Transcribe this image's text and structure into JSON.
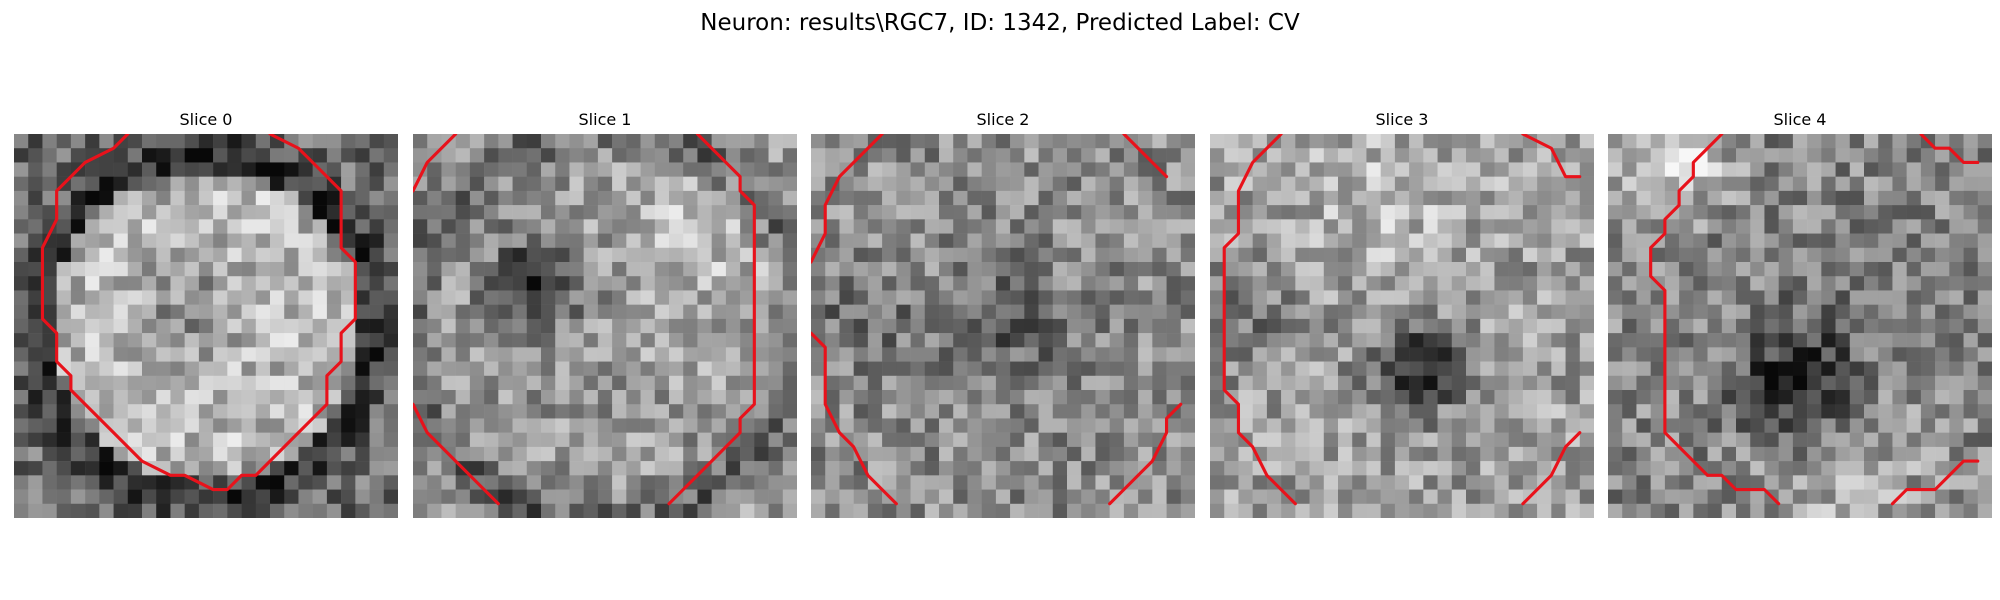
{
  "figure": {
    "title": "Neuron: results\\RGC7, ID: 1342, Predicted Label: CV"
  },
  "colors": {
    "contour": "#e8121b"
  },
  "slices": [
    {
      "title": "Slice 0",
      "pattern": "bright-disk",
      "contours": [
        [
          [
            8,
            0
          ],
          [
            7,
            1
          ],
          [
            5,
            2
          ],
          [
            3,
            4
          ],
          [
            3,
            6
          ],
          [
            2,
            8
          ],
          [
            2,
            13
          ],
          [
            3,
            14
          ],
          [
            3,
            16
          ],
          [
            4,
            17
          ],
          [
            4,
            18
          ],
          [
            5,
            19
          ],
          [
            7,
            21
          ],
          [
            8,
            22
          ],
          [
            9,
            23
          ],
          [
            11,
            24
          ],
          [
            12,
            24
          ],
          [
            14,
            25
          ],
          [
            15,
            25
          ],
          [
            16,
            24
          ],
          [
            17,
            24
          ],
          [
            19,
            22
          ],
          [
            20,
            21
          ],
          [
            21,
            20
          ],
          [
            22,
            19
          ],
          [
            22,
            17
          ],
          [
            23,
            16
          ],
          [
            23,
            14
          ],
          [
            24,
            13
          ],
          [
            24,
            9
          ],
          [
            23,
            8
          ],
          [
            23,
            4
          ],
          [
            22,
            3
          ],
          [
            21,
            2
          ],
          [
            20,
            1
          ],
          [
            18,
            0
          ]
        ]
      ]
    },
    {
      "title": "Slice 1",
      "pattern": "mid-disk-dark-left",
      "contours": [
        [
          [
            3,
            0
          ],
          [
            1,
            2
          ],
          [
            0,
            4
          ]
        ],
        [
          [
            20,
            0
          ],
          [
            22,
            2
          ],
          [
            23,
            3
          ],
          [
            23,
            4
          ],
          [
            24,
            5
          ],
          [
            24,
            19
          ],
          [
            23,
            20
          ],
          [
            23,
            21
          ],
          [
            22,
            22
          ],
          [
            20,
            24
          ],
          [
            19,
            25
          ],
          [
            18,
            26
          ]
        ],
        [
          [
            0,
            19
          ],
          [
            1,
            21
          ],
          [
            3,
            23
          ],
          [
            5,
            25
          ],
          [
            6,
            26
          ]
        ]
      ]
    },
    {
      "title": "Slice 2",
      "pattern": "noisy",
      "contours": [
        [
          [
            5,
            0
          ],
          [
            4,
            1
          ],
          [
            2,
            3
          ],
          [
            1,
            5
          ],
          [
            1,
            7
          ],
          [
            0,
            9
          ]
        ],
        [
          [
            0,
            14
          ],
          [
            1,
            15
          ],
          [
            1,
            19
          ],
          [
            2,
            21
          ],
          [
            3,
            22
          ],
          [
            4,
            24
          ],
          [
            5,
            25
          ],
          [
            6,
            26
          ]
        ],
        [
          [
            22,
            0
          ],
          [
            24,
            2
          ],
          [
            25,
            3
          ]
        ],
        [
          [
            26,
            19
          ],
          [
            25,
            20
          ],
          [
            25,
            21
          ],
          [
            24,
            23
          ],
          [
            22,
            25
          ],
          [
            21,
            26
          ]
        ]
      ]
    },
    {
      "title": "Slice 3",
      "pattern": "dark-center",
      "contours": [
        [
          [
            5,
            0
          ],
          [
            3,
            2
          ],
          [
            2,
            4
          ],
          [
            2,
            7
          ],
          [
            1,
            8
          ],
          [
            1,
            18
          ],
          [
            2,
            19
          ],
          [
            2,
            21
          ],
          [
            3,
            22
          ],
          [
            4,
            24
          ],
          [
            5,
            25
          ],
          [
            6,
            26
          ]
        ],
        [
          [
            22,
            0
          ],
          [
            24,
            1
          ],
          [
            25,
            3
          ],
          [
            26,
            3
          ]
        ],
        [
          [
            26,
            21
          ],
          [
            25,
            22
          ],
          [
            24,
            24
          ],
          [
            22,
            26
          ]
        ]
      ]
    },
    {
      "title": "Slice 4",
      "pattern": "bright-top-left-dark-center",
      "contours": [
        [
          [
            8,
            0
          ],
          [
            7,
            1
          ],
          [
            6,
            2
          ],
          [
            6,
            3
          ],
          [
            5,
            4
          ],
          [
            5,
            5
          ],
          [
            4,
            6
          ],
          [
            4,
            7
          ],
          [
            3,
            8
          ],
          [
            3,
            10
          ],
          [
            4,
            11
          ],
          [
            4,
            21
          ],
          [
            5,
            22
          ],
          [
            6,
            23
          ],
          [
            7,
            24
          ],
          [
            8,
            24
          ],
          [
            9,
            25
          ],
          [
            11,
            25
          ],
          [
            12,
            26
          ]
        ],
        [
          [
            22,
            0
          ],
          [
            23,
            1
          ],
          [
            24,
            1
          ],
          [
            25,
            2
          ],
          [
            26,
            2
          ]
        ],
        [
          [
            26,
            23
          ],
          [
            25,
            23
          ],
          [
            24,
            24
          ],
          [
            23,
            25
          ],
          [
            21,
            25
          ],
          [
            20,
            26
          ]
        ]
      ]
    }
  ]
}
